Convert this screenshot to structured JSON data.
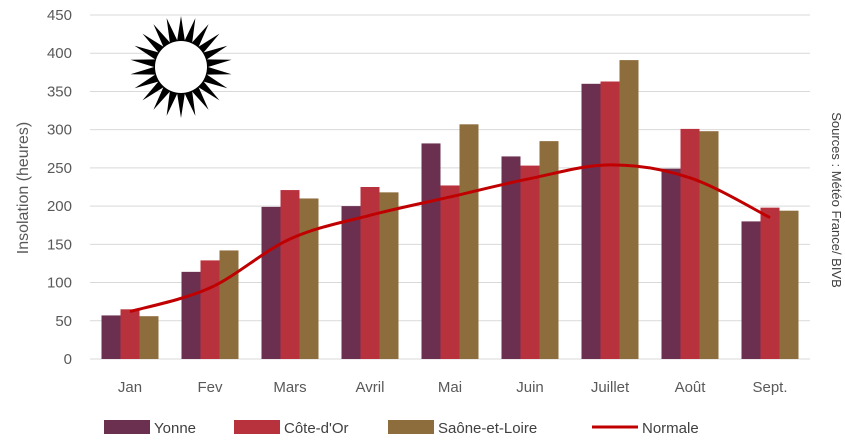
{
  "chart_data": {
    "type": "bar",
    "categories": [
      "Jan",
      "Fev",
      "Mars",
      "Avril",
      "Mai",
      "Juin",
      "Juillet",
      "Août",
      "Sept."
    ],
    "series": [
      {
        "name": "Yonne",
        "kind": "bar",
        "color": "#6b3050",
        "values": [
          57,
          114,
          199,
          200,
          282,
          265,
          360,
          249,
          180
        ]
      },
      {
        "name": "Côte-d'Or",
        "kind": "bar",
        "color": "#b8323e",
        "values": [
          65,
          129,
          221,
          225,
          227,
          253,
          363,
          301,
          198
        ]
      },
      {
        "name": "Saône-et-Loire",
        "kind": "bar",
        "color": "#8e6d3c",
        "values": [
          56,
          142,
          210,
          218,
          307,
          285,
          391,
          298,
          194
        ]
      },
      {
        "name": "Normale",
        "kind": "line",
        "color": "#c00000",
        "values": [
          62,
          93,
          157,
          188,
          212,
          236,
          254,
          237,
          185
        ]
      }
    ],
    "ylabel": "Insolation (heures)",
    "ylim": [
      0,
      450
    ],
    "yticks": [
      "0",
      "50",
      "100",
      "150",
      "200",
      "250",
      "300",
      "350",
      "400",
      "450"
    ],
    "grid": true,
    "legend_position": "bottom",
    "annotation": "Sources : Météo France/ BIVB",
    "decoration": "sun-icon"
  }
}
